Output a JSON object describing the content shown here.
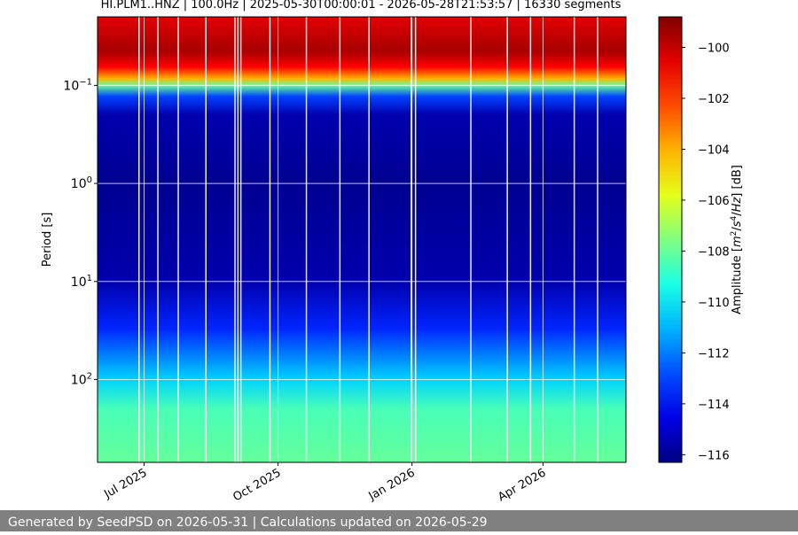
{
  "chart_data": {
    "type": "heatmap",
    "title": "HI.PLM1..HNZ | 100.0Hz | 2025-05-30T00:00:01 - 2026-05-28T21:53:57 | 16330 segments",
    "ylabel": "Period [s]",
    "y_scale": "log",
    "y_inverted": true,
    "ylim": [
      0.02,
      700
    ],
    "y_ticks": [
      {
        "value": 0.1,
        "base": "10",
        "exp": "−1"
      },
      {
        "value": 1,
        "base": "10",
        "exp": "0"
      },
      {
        "value": 10,
        "base": "10",
        "exp": "1"
      },
      {
        "value": 100,
        "base": "10",
        "exp": "2"
      }
    ],
    "xlim": [
      "2025-05-30",
      "2026-05-28"
    ],
    "x_ticks": [
      {
        "date": "2025-07-01",
        "label": "Jul 2025"
      },
      {
        "date": "2025-10-01",
        "label": "Oct 2025"
      },
      {
        "date": "2026-01-01",
        "label": "Jan 2026"
      },
      {
        "date": "2026-04-01",
        "label": "Apr 2026"
      }
    ],
    "grid": true,
    "colormap": "jet",
    "colorbar": {
      "label_parts": [
        "Amplitude [",
        "m",
        "2",
        "/",
        "s",
        "4",
        "/",
        "Hz",
        "] [dB]"
      ],
      "range": [
        -116.3,
        -98.8
      ],
      "ticks": [
        -100,
        -102,
        -104,
        -106,
        -108,
        -110,
        -112,
        -114,
        -116
      ]
    },
    "amplitude_profile_db": [
      {
        "period": 0.02,
        "db": -100.5
      },
      {
        "period": 0.045,
        "db": -99.5
      },
      {
        "period": 0.065,
        "db": -101
      },
      {
        "period": 0.085,
        "db": -104
      },
      {
        "period": 0.1,
        "db": -108
      },
      {
        "period": 0.13,
        "db": -113
      },
      {
        "period": 0.2,
        "db": -115.5
      },
      {
        "period": 1,
        "db": -116
      },
      {
        "period": 10,
        "db": -115.5
      },
      {
        "period": 30,
        "db": -113.5
      },
      {
        "period": 100,
        "db": -110.5
      },
      {
        "period": 200,
        "db": -108.5
      },
      {
        "period": 700,
        "db": -108
      }
    ],
    "gap_dates": [
      "2025-06-27",
      "2025-07-10",
      "2025-07-24",
      "2025-08-12",
      "2025-09-01",
      "2025-09-03",
      "2025-09-05",
      "2025-09-25",
      "2025-10-20",
      "2025-11-12",
      "2025-12-02",
      "2025-12-31",
      "2026-01-03",
      "2026-02-10",
      "2026-03-07",
      "2026-03-23",
      "2026-04-22",
      "2026-05-08"
    ]
  },
  "footer": {
    "text": "Generated by SeedPSD on 2026-05-31 | Calculations updated on 2026-05-29"
  }
}
